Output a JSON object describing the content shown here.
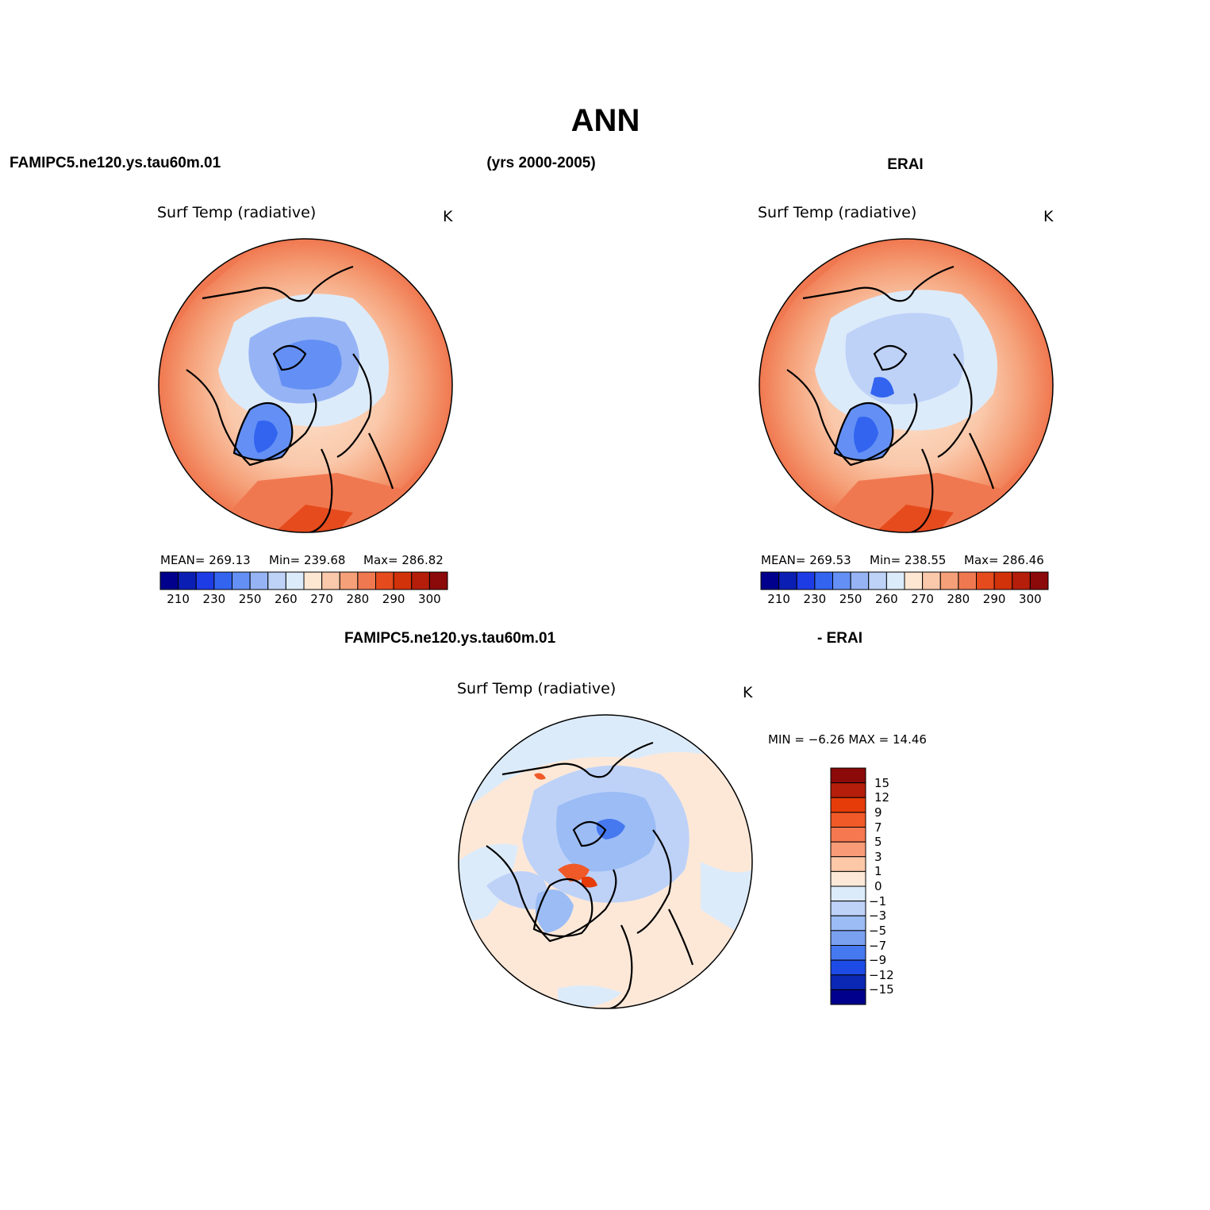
{
  "figure": {
    "title": "ANN",
    "case_name": "FAMIPC5.ne120.ys.tau60m.01",
    "years": "(yrs 2000-2005)",
    "obs_name": "ERAI",
    "diff_left": "FAMIPC5.ne120.ys.tau60m.01",
    "diff_right": "- ERAI"
  },
  "panels": [
    {
      "id": "model",
      "variable": "Surf Temp (radiative)",
      "units": "K",
      "mean": "MEAN=  269.13",
      "min": "Min=  239.68",
      "max": "Max=  286.82"
    },
    {
      "id": "obs",
      "variable": "Surf Temp (radiative)",
      "units": "K",
      "mean": "MEAN=  269.53",
      "min": "Min=  238.55",
      "max": "Max=  286.46"
    },
    {
      "id": "diff",
      "variable": "Surf Temp (radiative)",
      "units": "K",
      "minmax": "MIN =   −6.26  MAX =   14.46"
    }
  ],
  "colorbar_abs": {
    "colors": [
      "#00008c",
      "#0a1eb4",
      "#1e3ce6",
      "#3264f0",
      "#6490f5",
      "#96b4f5",
      "#bed2f8",
      "#dcebfa",
      "#fde6d2",
      "#fac8aa",
      "#f5a078",
      "#f07850",
      "#e64b1e",
      "#d2320a",
      "#b41e0a",
      "#8c0a0a"
    ],
    "tick_labels": [
      "210",
      "230",
      "250",
      "260",
      "270",
      "280",
      "290",
      "300"
    ]
  },
  "colorbar_diff": {
    "colors": [
      "#8c0a0a",
      "#b41e0a",
      "#e63c0a",
      "#f05a28",
      "#f57850",
      "#fa9b78",
      "#fcc8a8",
      "#fde8d8",
      "#dcebfa",
      "#bed2f8",
      "#9bbcf5",
      "#7aa0f0",
      "#4678f0",
      "#1e4be6",
      "#0a28b4",
      "#00008c"
    ],
    "tick_labels": [
      "15",
      "12",
      "9",
      "7",
      "5",
      "3",
      "1",
      "0",
      "−1",
      "−3",
      "−5",
      "−7",
      "−9",
      "−12",
      "−15"
    ]
  }
}
